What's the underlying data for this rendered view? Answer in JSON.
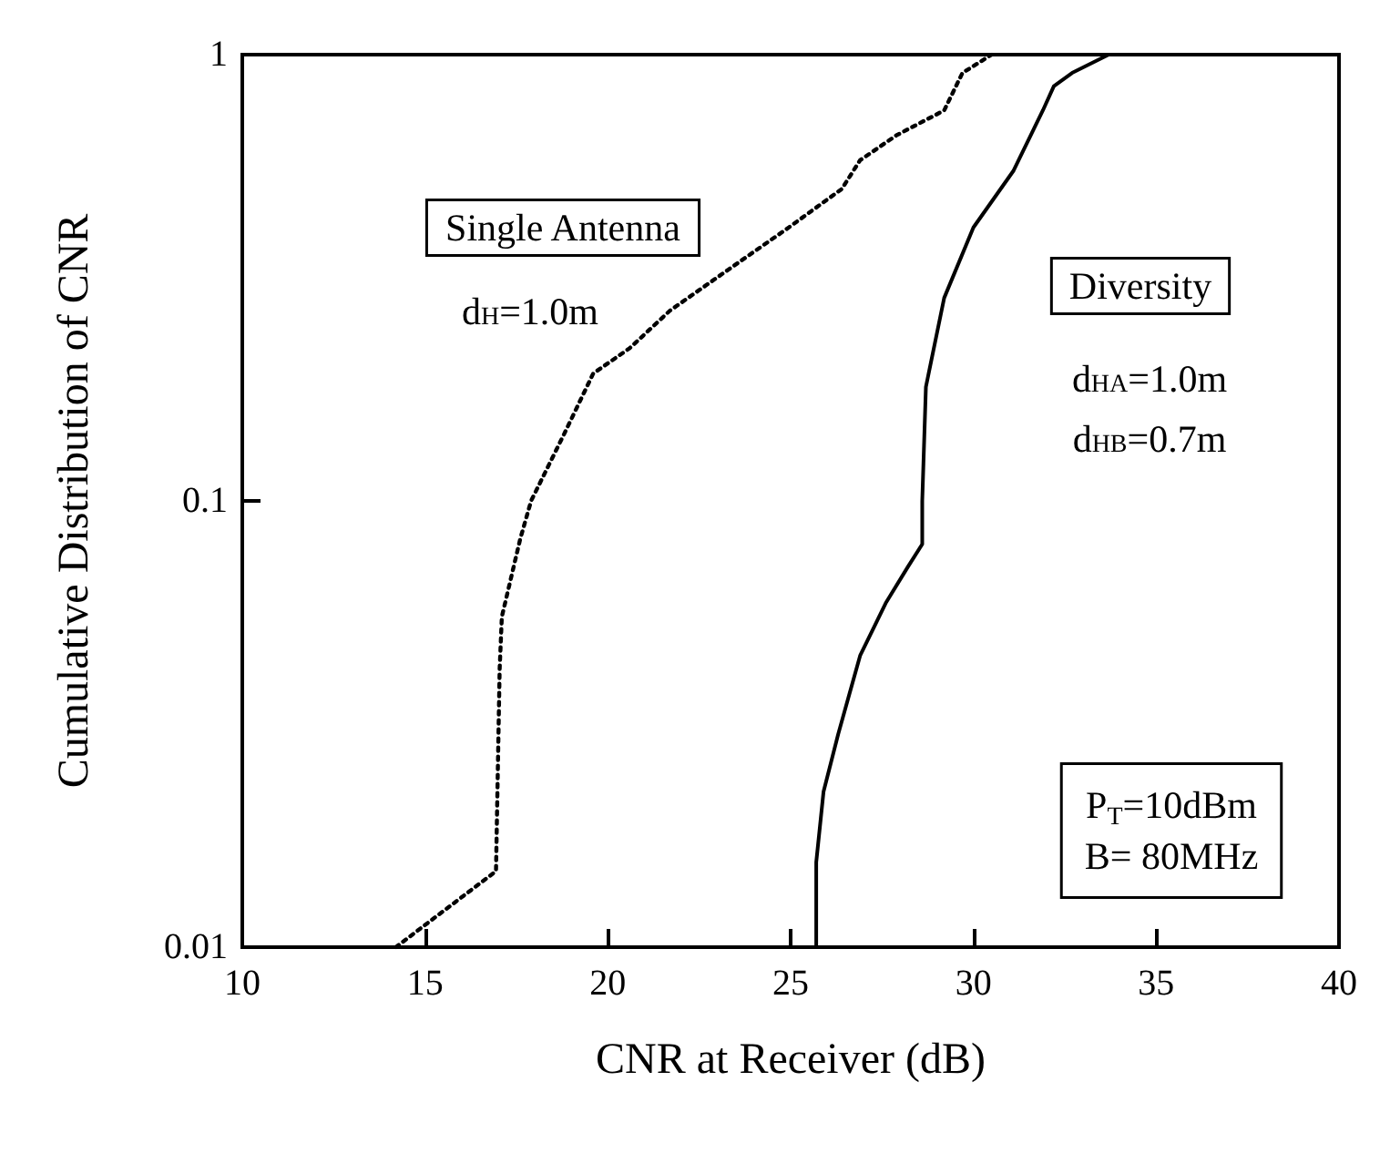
{
  "chart_data": {
    "type": "line",
    "xlabel": "CNR at Receiver (dB)",
    "ylabel": "Cumulative Distribution of CNR",
    "log": "y",
    "xlim": [
      10,
      40
    ],
    "xticks": [
      10,
      15,
      20,
      25,
      30,
      35,
      40
    ],
    "ylim": [
      0.01,
      1
    ],
    "yticks": [
      0.01,
      0.1,
      1
    ],
    "grid": false,
    "legend": false,
    "marker": "none",
    "series": [
      {
        "name": "Single Antenna",
        "color": "#000000",
        "line_style": "dotted",
        "x": [
          14.2,
          16.94,
          17.04,
          17.1,
          17.6,
          17.9,
          18.8,
          19.6,
          20.6,
          21.7,
          23.3,
          24.95,
          26.4,
          26.9,
          27.9,
          29.2,
          29.7,
          30.5
        ],
        "values": [
          0.01,
          0.0148,
          0.042,
          0.055,
          0.082,
          0.1,
          0.141,
          0.193,
          0.22,
          0.267,
          0.33,
          0.41,
          0.5,
          0.58,
          0.66,
          0.75,
          0.91,
          1
        ]
      },
      {
        "name": "Diversity",
        "color": "#000000",
        "line_style": "solid",
        "x": [
          25.7,
          25.7,
          25.9,
          26.3,
          26.9,
          27.6,
          28.2,
          28.6,
          28.6,
          28.7,
          29.2,
          30.0,
          31.1,
          31.9,
          32.2,
          32.7,
          33.7
        ],
        "values": [
          0.01,
          0.0155,
          0.0223,
          0.03,
          0.045,
          0.059,
          0.071,
          0.08,
          0.1,
          0.18,
          0.285,
          0.41,
          0.55,
          0.75,
          0.85,
          0.91,
          1
        ]
      }
    ],
    "annotations": [
      "d$_{H}$=1.0m",
      "d$_{HA}$=1.0m",
      "d$_{HB}$=0.7m",
      "P$_{T}$=10dBm",
      "B= 80MHz"
    ]
  }
}
